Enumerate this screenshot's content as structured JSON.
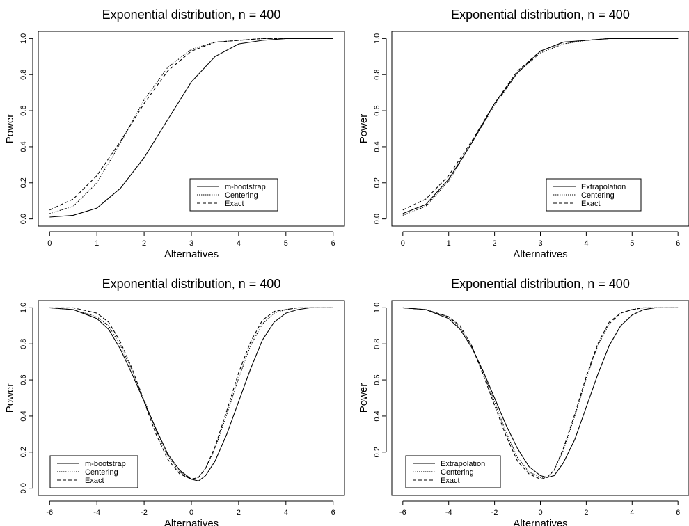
{
  "chart_data": [
    {
      "type": "line",
      "title": "Exponential distribution, n = 400",
      "xlabel": "Alternatives",
      "ylabel": "Power",
      "xlim": [
        0,
        6
      ],
      "ylim": [
        0,
        1
      ],
      "xticks": [
        "0",
        "1",
        "2",
        "3",
        "4",
        "5",
        "6"
      ],
      "yticks": [
        "0.0",
        "0.2",
        "0.4",
        "0.6",
        "0.8",
        "1.0"
      ],
      "grid": false,
      "legend_position": "bottom-right",
      "series": [
        {
          "name": "m-bootstrap",
          "line_style": "solid",
          "x": [
            0,
            0.5,
            1,
            1.5,
            2,
            2.5,
            3,
            3.5,
            4,
            4.5,
            5,
            6
          ],
          "y": [
            0.01,
            0.02,
            0.06,
            0.17,
            0.34,
            0.55,
            0.76,
            0.9,
            0.97,
            0.99,
            1.0,
            1.0
          ]
        },
        {
          "name": "Centering",
          "line_style": "dotted",
          "x": [
            0,
            0.5,
            1,
            1.5,
            2,
            2.5,
            3,
            3.5,
            4,
            4.5,
            5,
            6
          ],
          "y": [
            0.03,
            0.07,
            0.2,
            0.42,
            0.66,
            0.84,
            0.94,
            0.98,
            0.99,
            1.0,
            1.0,
            1.0
          ]
        },
        {
          "name": "Exact",
          "line_style": "dashed",
          "x": [
            0,
            0.5,
            1,
            1.5,
            2,
            2.5,
            3,
            3.5,
            4,
            4.5,
            5,
            6
          ],
          "y": [
            0.05,
            0.11,
            0.24,
            0.43,
            0.64,
            0.82,
            0.93,
            0.98,
            0.99,
            1.0,
            1.0,
            1.0
          ]
        }
      ]
    },
    {
      "type": "line",
      "title": "Exponential distribution, n = 400",
      "xlabel": "Alternatives",
      "ylabel": "Power",
      "xlim": [
        0,
        6
      ],
      "ylim": [
        0,
        1
      ],
      "xticks": [
        "0",
        "1",
        "2",
        "3",
        "4",
        "5",
        "6"
      ],
      "yticks": [
        "0.0",
        "0.2",
        "0.4",
        "0.6",
        "0.8",
        "1.0"
      ],
      "grid": false,
      "legend_position": "bottom-right",
      "series": [
        {
          "name": "Extrapolation",
          "line_style": "solid",
          "x": [
            0,
            0.5,
            1,
            1.5,
            2,
            2.5,
            3,
            3.5,
            4,
            4.5,
            5,
            6
          ],
          "y": [
            0.03,
            0.08,
            0.22,
            0.42,
            0.64,
            0.81,
            0.93,
            0.98,
            0.99,
            1.0,
            1.0,
            1.0
          ]
        },
        {
          "name": "Centering",
          "line_style": "dotted",
          "x": [
            0,
            0.5,
            1,
            1.5,
            2,
            2.5,
            3,
            3.5,
            4,
            4.5,
            5,
            6
          ],
          "y": [
            0.02,
            0.07,
            0.21,
            0.42,
            0.63,
            0.81,
            0.92,
            0.97,
            0.99,
            1.0,
            1.0,
            1.0
          ]
        },
        {
          "name": "Exact",
          "line_style": "dashed",
          "x": [
            0,
            0.5,
            1,
            1.5,
            2,
            2.5,
            3,
            3.5,
            4,
            4.5,
            5,
            6
          ],
          "y": [
            0.05,
            0.11,
            0.24,
            0.43,
            0.64,
            0.82,
            0.93,
            0.98,
            0.99,
            1.0,
            1.0,
            1.0
          ]
        }
      ]
    },
    {
      "type": "line",
      "title": "Exponential distribution, n = 400",
      "xlabel": "Alternatives",
      "ylabel": "Power",
      "xlim": [
        -6,
        6
      ],
      "ylim": [
        0,
        1
      ],
      "xticks": [
        "-6",
        "-4",
        "-2",
        "0",
        "2",
        "4",
        "6"
      ],
      "yticks": [
        "0.0",
        "0.2",
        "0.4",
        "0.6",
        "0.8",
        "1.0"
      ],
      "grid": false,
      "legend_position": "bottom-left",
      "series": [
        {
          "name": "m-bootstrap",
          "line_style": "solid",
          "x": [
            -6,
            -5,
            -4,
            -3.5,
            -3,
            -2.5,
            -2,
            -1.5,
            -1,
            -0.5,
            0,
            0.3,
            0.6,
            1,
            1.5,
            2,
            2.5,
            3,
            3.5,
            4,
            4.5,
            5,
            6
          ],
          "y": [
            1.0,
            0.99,
            0.94,
            0.88,
            0.77,
            0.63,
            0.48,
            0.33,
            0.19,
            0.1,
            0.05,
            0.04,
            0.07,
            0.15,
            0.3,
            0.48,
            0.66,
            0.82,
            0.92,
            0.97,
            0.99,
            1.0,
            1.0
          ]
        },
        {
          "name": "Centering",
          "line_style": "dotted",
          "x": [
            -6,
            -5,
            -4,
            -3.5,
            -3,
            -2.5,
            -2,
            -1.5,
            -1,
            -0.5,
            0,
            0.3,
            0.6,
            1,
            1.5,
            2,
            2.5,
            3,
            3.5,
            4,
            4.5,
            5,
            6
          ],
          "y": [
            1.0,
            0.99,
            0.95,
            0.9,
            0.79,
            0.65,
            0.49,
            0.32,
            0.18,
            0.09,
            0.05,
            0.06,
            0.11,
            0.22,
            0.41,
            0.61,
            0.79,
            0.91,
            0.97,
            0.99,
            1.0,
            1.0,
            1.0
          ]
        },
        {
          "name": "Exact",
          "line_style": "dashed",
          "x": [
            -6,
            -5,
            -4,
            -3.5,
            -3,
            -2.5,
            -2,
            -1.5,
            -1,
            -0.5,
            0,
            0.3,
            0.6,
            1,
            1.5,
            2,
            2.5,
            3,
            3.5,
            4,
            4.5,
            5,
            6
          ],
          "y": [
            1.0,
            1.0,
            0.97,
            0.92,
            0.81,
            0.66,
            0.48,
            0.3,
            0.16,
            0.08,
            0.05,
            0.06,
            0.11,
            0.23,
            0.43,
            0.64,
            0.81,
            0.93,
            0.98,
            0.99,
            1.0,
            1.0,
            1.0
          ]
        }
      ]
    },
    {
      "type": "line",
      "title": "Exponential distribution, n = 400",
      "xlabel": "Alternatives",
      "ylabel": "Power",
      "xlim": [
        -6,
        6
      ],
      "ylim": [
        0,
        1
      ],
      "xticks": [
        "-6",
        "-4",
        "-2",
        "0",
        "2",
        "4",
        "6"
      ],
      "yticks": [
        "0.2",
        "0.4",
        "0.6",
        "0.8",
        "1.0"
      ],
      "grid": false,
      "legend_position": "bottom-left",
      "series": [
        {
          "name": "Extrapolation",
          "line_style": "solid",
          "x": [
            -6,
            -5,
            -4,
            -3.5,
            -3,
            -2.5,
            -2,
            -1.5,
            -1,
            -0.5,
            0,
            0.3,
            0.6,
            1,
            1.5,
            2,
            2.5,
            3,
            3.5,
            4,
            4.5,
            5,
            6
          ],
          "y": [
            1.0,
            0.99,
            0.94,
            0.88,
            0.78,
            0.65,
            0.5,
            0.35,
            0.22,
            0.12,
            0.07,
            0.06,
            0.07,
            0.14,
            0.27,
            0.45,
            0.63,
            0.79,
            0.9,
            0.96,
            0.99,
            1.0,
            1.0
          ]
        },
        {
          "name": "Centering",
          "line_style": "dotted",
          "x": [
            -6,
            -5,
            -4,
            -3.5,
            -3,
            -2.5,
            -2,
            -1.5,
            -1,
            -0.5,
            0,
            0.3,
            0.6,
            1,
            1.5,
            2,
            2.5,
            3,
            3.5,
            4,
            4.5,
            5,
            6
          ],
          "y": [
            1.0,
            0.99,
            0.95,
            0.89,
            0.79,
            0.64,
            0.48,
            0.31,
            0.17,
            0.09,
            0.06,
            0.06,
            0.1,
            0.21,
            0.4,
            0.61,
            0.79,
            0.91,
            0.97,
            0.99,
            1.0,
            1.0,
            1.0
          ]
        },
        {
          "name": "Exact",
          "line_style": "dashed",
          "x": [
            -6,
            -5,
            -4,
            -3.5,
            -3,
            -2.5,
            -2,
            -1.5,
            -1,
            -0.5,
            0,
            0.3,
            0.6,
            1,
            1.5,
            2,
            2.5,
            3,
            3.5,
            4,
            4.5,
            5,
            6
          ],
          "y": [
            1.0,
            0.99,
            0.95,
            0.9,
            0.79,
            0.63,
            0.46,
            0.29,
            0.15,
            0.08,
            0.05,
            0.06,
            0.1,
            0.22,
            0.41,
            0.62,
            0.8,
            0.92,
            0.97,
            0.99,
            1.0,
            1.0,
            1.0
          ]
        }
      ]
    }
  ]
}
